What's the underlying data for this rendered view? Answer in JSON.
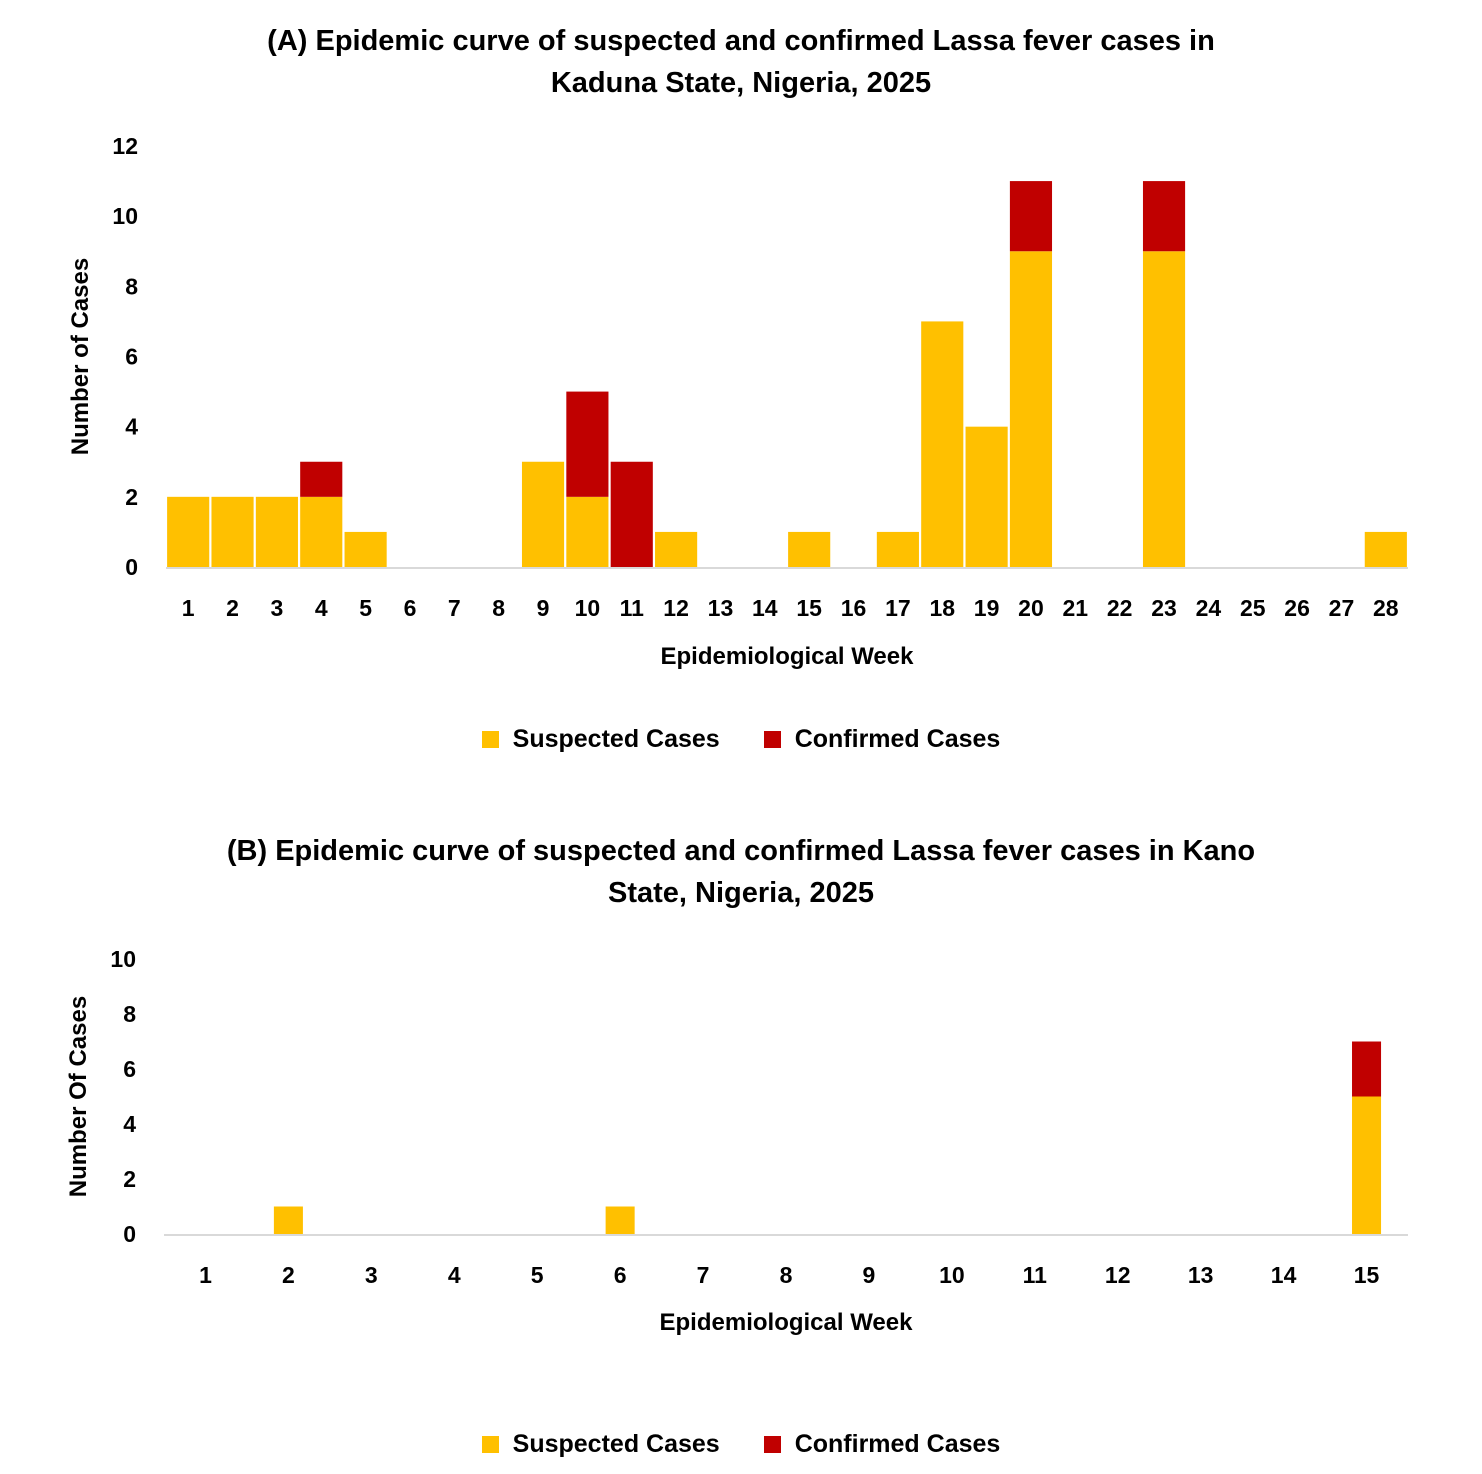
{
  "colors": {
    "suspected": "#FFC000",
    "confirmed": "#C00000",
    "axis": "#D9D9D9"
  },
  "chart_data": [
    {
      "type": "bar",
      "stacked": true,
      "title_lines": [
        "(A) Epidemic curve of suspected and confirmed Lassa fever cases in",
        "Kaduna State, Nigeria, 2025"
      ],
      "xlabel": "Epidemiological Week",
      "ylabel": "Number of Cases",
      "ylim": [
        0,
        12
      ],
      "yticks": [
        0,
        2,
        4,
        6,
        8,
        10,
        12
      ],
      "grid": false,
      "legend_position": "bottom",
      "categories": [
        "1",
        "2",
        "3",
        "4",
        "5",
        "6",
        "7",
        "8",
        "9",
        "10",
        "11",
        "12",
        "13",
        "14",
        "15",
        "16",
        "17",
        "18",
        "19",
        "20",
        "21",
        "22",
        "23",
        "24",
        "25",
        "26",
        "27",
        "28"
      ],
      "series": [
        {
          "name": "Suspected Cases",
          "color": "#FFC000",
          "values": [
            2,
            2,
            2,
            2,
            1,
            0,
            0,
            0,
            3,
            2,
            0,
            1,
            0,
            0,
            1,
            0,
            1,
            7,
            4,
            9,
            0,
            0,
            9,
            0,
            0,
            0,
            0,
            1
          ]
        },
        {
          "name": "Confirmed Cases",
          "color": "#C00000",
          "values": [
            0,
            0,
            0,
            1,
            0,
            0,
            0,
            0,
            0,
            3,
            3,
            0,
            0,
            0,
            0,
            0,
            0,
            0,
            0,
            2,
            0,
            0,
            2,
            0,
            0,
            0,
            0,
            0
          ]
        }
      ]
    },
    {
      "type": "bar",
      "stacked": true,
      "title_lines": [
        "(B) Epidemic curve of suspected and confirmed Lassa fever cases in Kano",
        "State, Nigeria, 2025"
      ],
      "xlabel": "Epidemiological Week",
      "ylabel": "Number Of Cases",
      "ylim": [
        0,
        10
      ],
      "yticks": [
        0,
        2,
        4,
        6,
        8,
        10
      ],
      "grid": false,
      "legend_position": "bottom",
      "categories": [
        "1",
        "2",
        "3",
        "4",
        "5",
        "6",
        "7",
        "8",
        "9",
        "10",
        "11",
        "12",
        "13",
        "14",
        "15"
      ],
      "series": [
        {
          "name": "Suspected Cases",
          "color": "#FFC000",
          "values": [
            0,
            1,
            0,
            0,
            0,
            1,
            0,
            0,
            0,
            0,
            0,
            0,
            0,
            0,
            5
          ]
        },
        {
          "name": "Confirmed Cases",
          "color": "#C00000",
          "values": [
            0,
            0,
            0,
            0,
            0,
            0,
            0,
            0,
            0,
            0,
            0,
            0,
            0,
            0,
            2
          ]
        }
      ]
    }
  ]
}
